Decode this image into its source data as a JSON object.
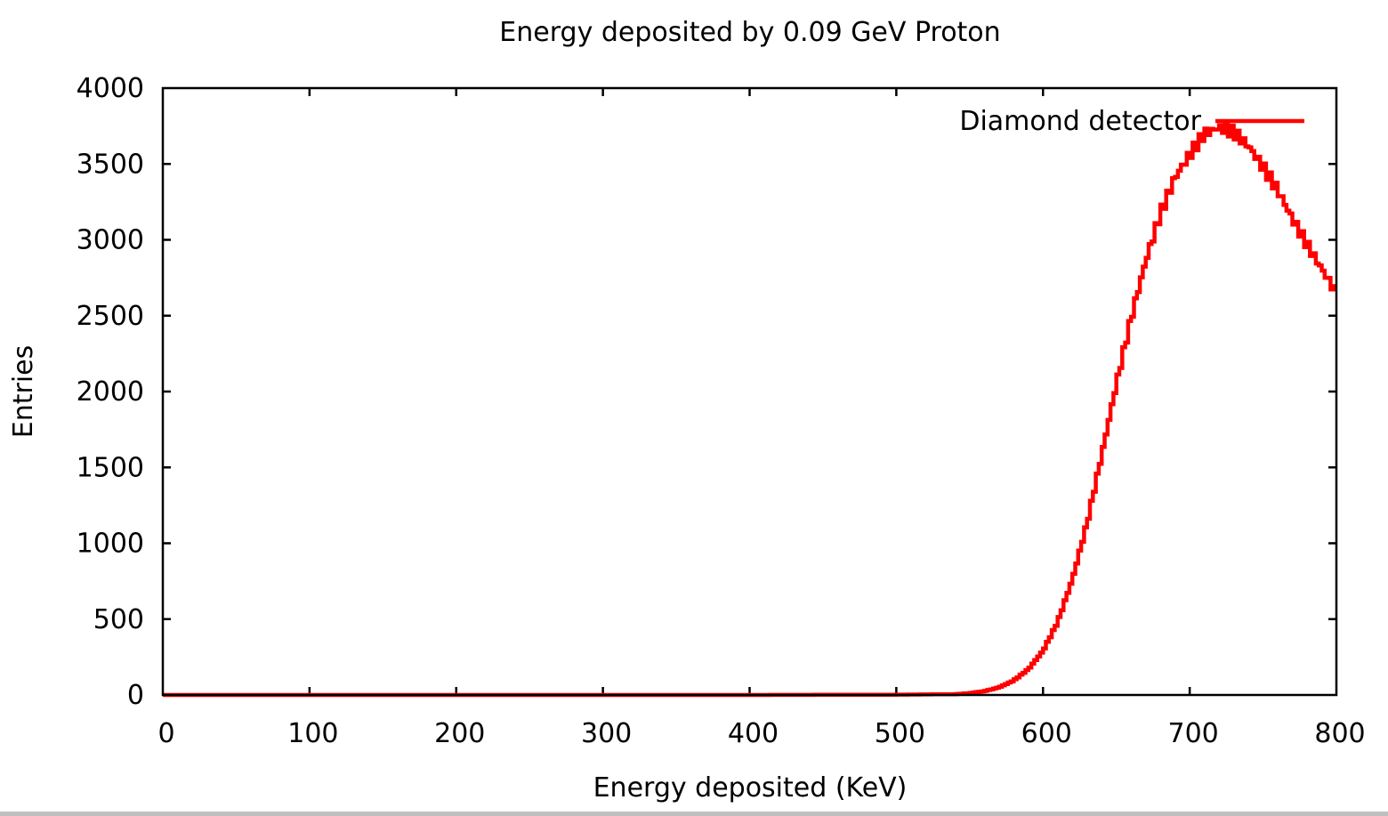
{
  "chart_data": {
    "type": "line",
    "title": "Energy deposited by 0.09 GeV Proton",
    "xlabel": "Energy deposited (KeV)",
    "ylabel": "Entries",
    "xlim": [
      0,
      800
    ],
    "ylim": [
      0,
      4000
    ],
    "xticks": [
      "0",
      "100",
      "200",
      "300",
      "400",
      "500",
      "600",
      "700",
      "800"
    ],
    "yticks": [
      "0",
      "500",
      "1000",
      "1500",
      "2000",
      "2500",
      "3000",
      "3500",
      "4000"
    ],
    "grid": false,
    "legend": "top-right",
    "series": [
      {
        "name": "Diamond detector",
        "color": "#ff0000",
        "style": "histogram-steps",
        "x": [
          0,
          100,
          200,
          300,
          400,
          500,
          540,
          550,
          560,
          570,
          580,
          590,
          600,
          610,
          620,
          630,
          640,
          650,
          660,
          670,
          680,
          690,
          700,
          710,
          720,
          730,
          740,
          750,
          760,
          770,
          780,
          790,
          800
        ],
        "y": [
          0,
          0,
          0,
          0,
          0,
          2,
          5,
          12,
          25,
          50,
          95,
          170,
          290,
          480,
          760,
          1130,
          1580,
          2050,
          2480,
          2860,
          3170,
          3410,
          3560,
          3700,
          3740,
          3710,
          3620,
          3480,
          3330,
          3140,
          2970,
          2810,
          2650
        ]
      }
    ]
  }
}
